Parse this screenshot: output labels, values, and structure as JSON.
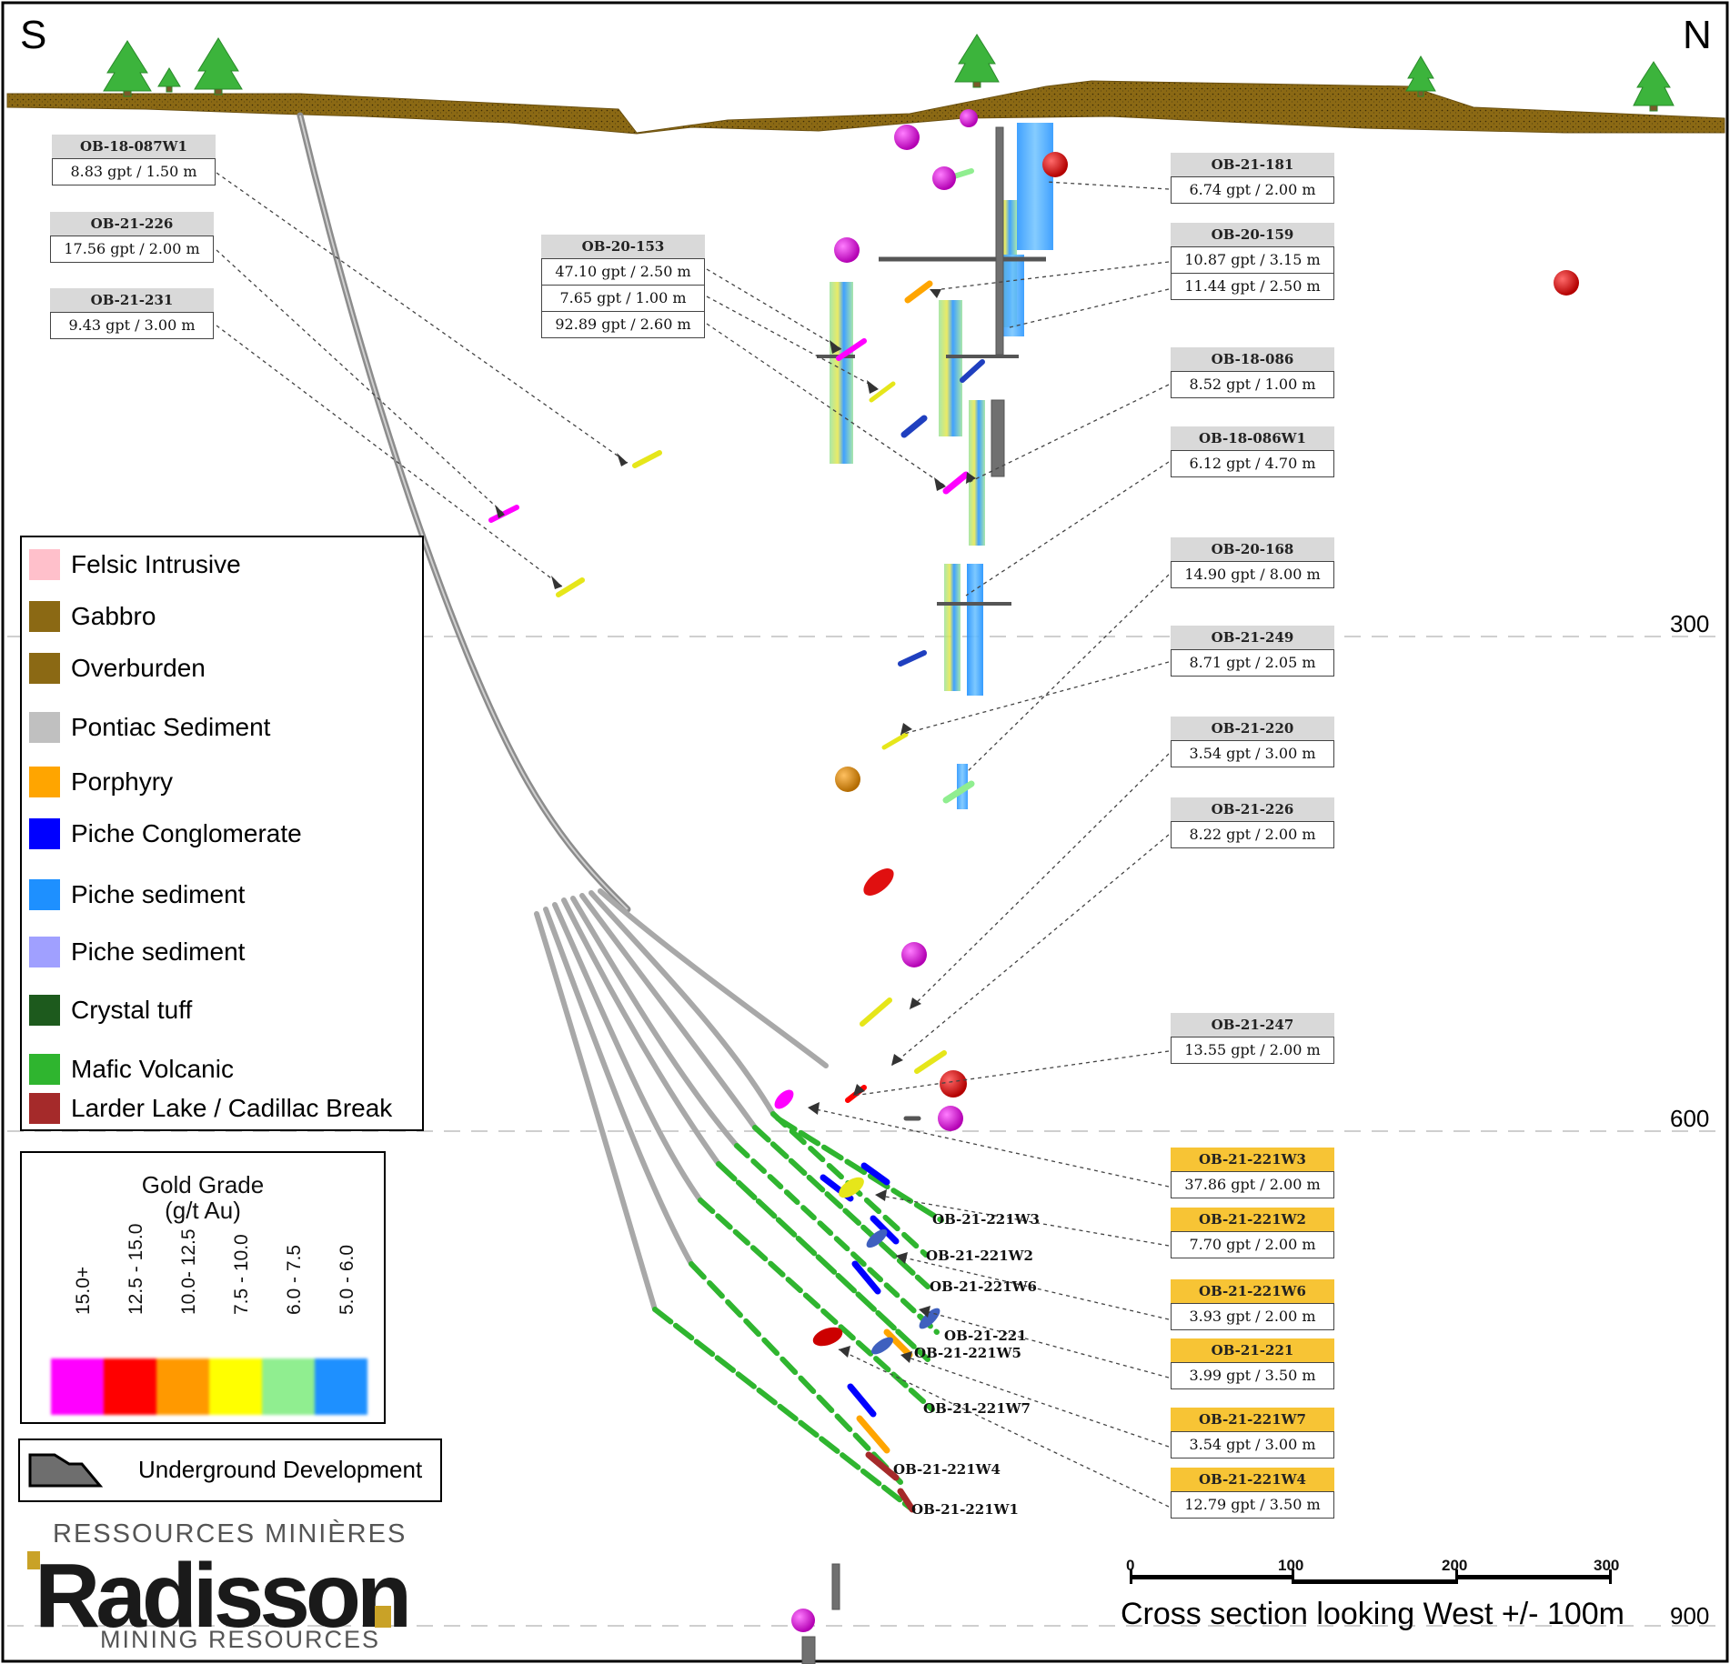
{
  "orientation": {
    "left": "S",
    "right": "N"
  },
  "depth_labels": [
    "300",
    "600",
    "900"
  ],
  "callouts_left": [
    {
      "hole": "OB-18-087W1",
      "rows": [
        "8.83 gpt / 1.50 m"
      ]
    },
    {
      "hole": "OB-21-226",
      "rows": [
        "17.56 gpt / 2.00 m"
      ]
    },
    {
      "hole": "OB-21-231",
      "rows": [
        "9.43 gpt / 3.00 m"
      ]
    },
    {
      "hole": "OB-20-153",
      "rows": [
        "47.10 gpt / 2.50 m",
        "7.65 gpt / 1.00 m",
        "92.89 gpt / 2.60 m"
      ]
    }
  ],
  "callouts_right": [
    {
      "hole": "OB-21-181",
      "rows": [
        "6.74 gpt / 2.00 m"
      ],
      "highlight": false
    },
    {
      "hole": "OB-20-159",
      "rows": [
        "10.87 gpt / 3.15 m",
        "11.44 gpt / 2.50 m"
      ],
      "highlight": false
    },
    {
      "hole": "OB-18-086",
      "rows": [
        "8.52 gpt / 1.00 m"
      ],
      "highlight": false
    },
    {
      "hole": "OB-18-086W1",
      "rows": [
        "6.12 gpt / 4.70 m"
      ],
      "highlight": false
    },
    {
      "hole": "OB-20-168",
      "rows": [
        "14.90 gpt / 8.00 m"
      ],
      "highlight": false
    },
    {
      "hole": "OB-21-249",
      "rows": [
        "8.71 gpt / 2.05 m"
      ],
      "highlight": false
    },
    {
      "hole": "OB-21-220",
      "rows": [
        "3.54 gpt / 3.00 m"
      ],
      "highlight": false
    },
    {
      "hole": "OB-21-226",
      "rows": [
        "8.22 gpt / 2.00 m"
      ],
      "highlight": false
    },
    {
      "hole": "OB-21-247",
      "rows": [
        "13.55 gpt / 2.00 m"
      ],
      "highlight": false
    },
    {
      "hole": "OB-21-221W3",
      "rows": [
        "37.86 gpt / 2.00 m"
      ],
      "highlight": true
    },
    {
      "hole": "OB-21-221W2",
      "rows": [
        "7.70 gpt / 2.00 m"
      ],
      "highlight": true
    },
    {
      "hole": "OB-21-221W6",
      "rows": [
        "3.93 gpt / 2.00 m"
      ],
      "highlight": true
    },
    {
      "hole": "OB-21-221",
      "rows": [
        "3.99 gpt / 3.50 m"
      ],
      "highlight": true
    },
    {
      "hole": "OB-21-221W7",
      "rows": [
        "3.54 gpt / 3.00 m"
      ],
      "highlight": true
    },
    {
      "hole": "OB-21-221W4",
      "rows": [
        "12.79 gpt / 3.50 m"
      ],
      "highlight": true
    }
  ],
  "hole_labels": [
    "OB-21-221W3",
    "OB-21-221W2",
    "OB-21-221W6",
    "OB-21-221",
    "OB-21-221W5",
    "OB-21-221W7",
    "OB-21-221W4",
    "OB-21-221W1"
  ],
  "legend": {
    "items": [
      {
        "label": "Felsic Intrusive",
        "color": "#ffc0cb"
      },
      {
        "label": "Gabbro",
        "color": "#8b6914"
      },
      {
        "label": "Overburden",
        "color": "#8b6914"
      },
      {
        "label": "Pontiac Sediment",
        "color": "#c0c0c0"
      },
      {
        "label": "Porphyry",
        "color": "#ffa500"
      },
      {
        "label": "Piche Conglomerate",
        "color": "#0000ff"
      },
      {
        "label": "Piche sediment",
        "color": "#1e90ff"
      },
      {
        "label": "Piche sediment",
        "color": "#a0a0ff"
      },
      {
        "label": "Crystal tuff",
        "color": "#1d5a1d"
      },
      {
        "label": "Mafic Volcanic",
        "color": "#2fb52f"
      },
      {
        "label": "Larder Lake / Cadillac Break",
        "color": "#a52a2a"
      }
    ]
  },
  "grade_legend": {
    "title_line1": "Gold Grade",
    "title_line2": "(g/t Au)",
    "bins": [
      {
        "label": "15.0+",
        "color": "#ff00ff"
      },
      {
        "label": "12.5 - 15.0",
        "color": "#ff0000"
      },
      {
        "label": "10.0- 12.5",
        "color": "#ff9900"
      },
      {
        "label": "7.5 - 10.0",
        "color": "#ffff00"
      },
      {
        "label": "6.0 - 7.5",
        "color": "#90ee90"
      },
      {
        "label": "5.0 - 6.0",
        "color": "#1e90ff"
      }
    ]
  },
  "underground_label": "Underground Development",
  "logo": {
    "top": "RESSOURCES MINIÈRES",
    "main": "Radisson",
    "bottom": "MINING RESOURCES"
  },
  "scale": {
    "ticks": [
      "0",
      "100",
      "200",
      "300"
    ],
    "caption": "Cross section looking West +/- 100m"
  },
  "colors": {
    "overburden": "#8b6914",
    "trace": "#a8a8a8",
    "trees": "#3cb43c"
  }
}
